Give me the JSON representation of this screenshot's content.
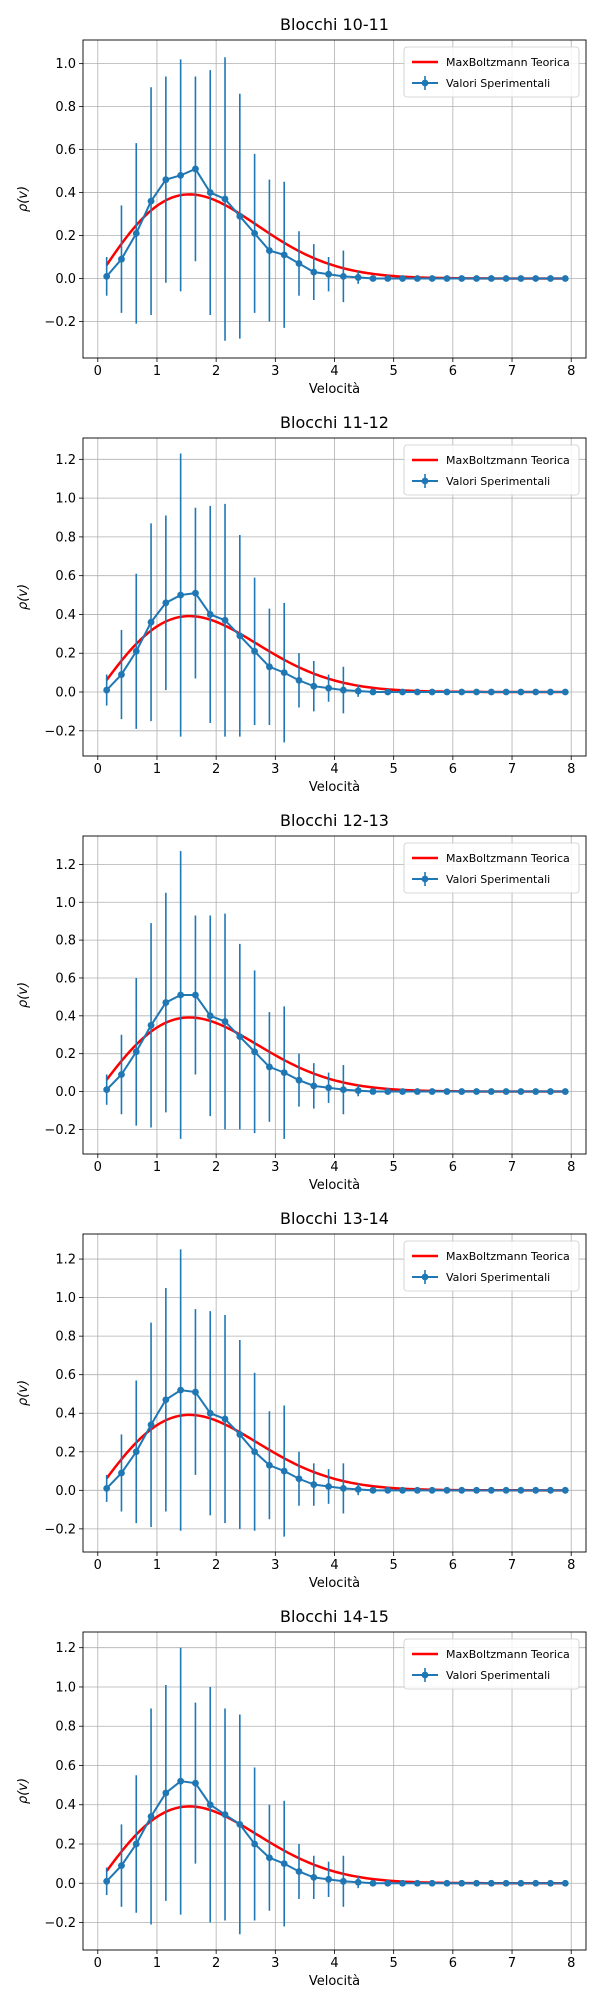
{
  "figure": {
    "background": "#ffffff"
  },
  "style": {
    "theory_color": "#ff0000",
    "exp_color": "#1f77b4",
    "grid_color": "#b0b0b0"
  },
  "chart_data": [
    {
      "type": "line",
      "title": "Blocchi 10-11",
      "xlabel": "Velocità",
      "ylabel": "ρ(v)",
      "xlim": [
        -0.25,
        8.25
      ],
      "ylim": [
        -0.37,
        1.11
      ],
      "xticks": [
        0,
        1,
        2,
        3,
        4,
        5,
        6,
        7,
        8
      ],
      "yticks": [
        -0.2,
        0.0,
        0.2,
        0.4,
        0.6,
        0.8,
        1.0
      ],
      "legend_position": "top-right",
      "grid": true,
      "series": [
        {
          "name": "MaxBoltzmann Teorica",
          "kind": "line",
          "color": "#ff0000"
        },
        {
          "name": "Valori Sperimentali",
          "kind": "errorbar",
          "color": "#1f77b4",
          "x": [
            0.15,
            0.4,
            0.65,
            0.9,
            1.15,
            1.4,
            1.65,
            1.9,
            2.15,
            2.4,
            2.65,
            2.9,
            3.15,
            3.4,
            3.65,
            3.9,
            4.15,
            4.4,
            4.65,
            4.9,
            5.15,
            5.4,
            5.65,
            5.9,
            6.15,
            6.4,
            6.65,
            6.9,
            7.15,
            7.4,
            7.65,
            7.9
          ],
          "y": [
            0.01,
            0.09,
            0.21,
            0.36,
            0.46,
            0.48,
            0.51,
            0.4,
            0.37,
            0.29,
            0.21,
            0.13,
            0.11,
            0.07,
            0.03,
            0.02,
            0.01,
            0.005,
            0,
            0,
            0,
            0,
            0,
            0,
            0,
            0,
            0,
            0,
            0,
            0,
            0,
            0
          ],
          "yerr": [
            0.09,
            0.25,
            0.42,
            0.53,
            0.48,
            0.54,
            0.43,
            0.57,
            0.66,
            0.57,
            0.37,
            0.33,
            0.34,
            0.15,
            0.13,
            0.08,
            0.12,
            0.03,
            0,
            0,
            0,
            0,
            0,
            0,
            0,
            0,
            0,
            0,
            0,
            0,
            0,
            0
          ]
        }
      ]
    },
    {
      "type": "line",
      "title": "Blocchi 11-12",
      "xlabel": "Velocità",
      "ylabel": "ρ(v)",
      "xlim": [
        -0.25,
        8.25
      ],
      "ylim": [
        -0.33,
        1.31
      ],
      "xticks": [
        0,
        1,
        2,
        3,
        4,
        5,
        6,
        7,
        8
      ],
      "yticks": [
        -0.2,
        0.0,
        0.2,
        0.4,
        0.6,
        0.8,
        1.0,
        1.2
      ],
      "legend_position": "top-right",
      "grid": true,
      "series": [
        {
          "name": "MaxBoltzmann Teorica",
          "kind": "line",
          "color": "#ff0000"
        },
        {
          "name": "Valori Sperimentali",
          "kind": "errorbar",
          "color": "#1f77b4",
          "x": [
            0.15,
            0.4,
            0.65,
            0.9,
            1.15,
            1.4,
            1.65,
            1.9,
            2.15,
            2.4,
            2.65,
            2.9,
            3.15,
            3.4,
            3.65,
            3.9,
            4.15,
            4.4,
            4.65,
            4.9,
            5.15,
            5.4,
            5.65,
            5.9,
            6.15,
            6.4,
            6.65,
            6.9,
            7.15,
            7.4,
            7.65,
            7.9
          ],
          "y": [
            0.01,
            0.09,
            0.21,
            0.36,
            0.46,
            0.5,
            0.51,
            0.4,
            0.37,
            0.29,
            0.21,
            0.13,
            0.1,
            0.06,
            0.03,
            0.02,
            0.01,
            0.005,
            0,
            0,
            0,
            0,
            0,
            0,
            0,
            0,
            0,
            0,
            0,
            0,
            0,
            0
          ],
          "yerr": [
            0.08,
            0.23,
            0.4,
            0.51,
            0.45,
            0.73,
            0.44,
            0.56,
            0.6,
            0.52,
            0.38,
            0.3,
            0.36,
            0.14,
            0.13,
            0.07,
            0.12,
            0.03,
            0,
            0,
            0,
            0,
            0,
            0,
            0,
            0,
            0,
            0,
            0,
            0,
            0,
            0
          ]
        }
      ]
    },
    {
      "type": "line",
      "title": "Blocchi 12-13",
      "xlabel": "Velocità",
      "ylabel": "ρ(v)",
      "xlim": [
        -0.25,
        8.25
      ],
      "ylim": [
        -0.33,
        1.35
      ],
      "xticks": [
        0,
        1,
        2,
        3,
        4,
        5,
        6,
        7,
        8
      ],
      "yticks": [
        -0.2,
        0.0,
        0.2,
        0.4,
        0.6,
        0.8,
        1.0,
        1.2
      ],
      "legend_position": "top-right",
      "grid": true,
      "series": [
        {
          "name": "MaxBoltzmann Teorica",
          "kind": "line",
          "color": "#ff0000"
        },
        {
          "name": "Valori Sperimentali",
          "kind": "errorbar",
          "color": "#1f77b4",
          "x": [
            0.15,
            0.4,
            0.65,
            0.9,
            1.15,
            1.4,
            1.65,
            1.9,
            2.15,
            2.4,
            2.65,
            2.9,
            3.15,
            3.4,
            3.65,
            3.9,
            4.15,
            4.4,
            4.65,
            4.9,
            5.15,
            5.4,
            5.65,
            5.9,
            6.15,
            6.4,
            6.65,
            6.9,
            7.15,
            7.4,
            7.65,
            7.9
          ],
          "y": [
            0.01,
            0.09,
            0.21,
            0.35,
            0.47,
            0.51,
            0.51,
            0.4,
            0.37,
            0.29,
            0.21,
            0.13,
            0.1,
            0.06,
            0.03,
            0.02,
            0.01,
            0.005,
            0,
            0,
            0,
            0,
            0,
            0,
            0,
            0,
            0,
            0,
            0,
            0,
            0,
            0
          ],
          "yerr": [
            0.08,
            0.21,
            0.39,
            0.54,
            0.58,
            0.76,
            0.42,
            0.53,
            0.57,
            0.49,
            0.43,
            0.29,
            0.35,
            0.14,
            0.12,
            0.08,
            0.13,
            0.03,
            0,
            0,
            0,
            0,
            0,
            0,
            0,
            0,
            0,
            0,
            0,
            0,
            0,
            0
          ]
        }
      ]
    },
    {
      "type": "line",
      "title": "Blocchi 13-14",
      "xlabel": "Velocità",
      "ylabel": "ρ(v)",
      "xlim": [
        -0.25,
        8.25
      ],
      "ylim": [
        -0.32,
        1.33
      ],
      "xticks": [
        0,
        1,
        2,
        3,
        4,
        5,
        6,
        7,
        8
      ],
      "yticks": [
        -0.2,
        0.0,
        0.2,
        0.4,
        0.6,
        0.8,
        1.0,
        1.2
      ],
      "legend_position": "top-right",
      "grid": true,
      "series": [
        {
          "name": "MaxBoltzmann Teorica",
          "kind": "line",
          "color": "#ff0000"
        },
        {
          "name": "Valori Sperimentali",
          "kind": "errorbar",
          "color": "#1f77b4",
          "x": [
            0.15,
            0.4,
            0.65,
            0.9,
            1.15,
            1.4,
            1.65,
            1.9,
            2.15,
            2.4,
            2.65,
            2.9,
            3.15,
            3.4,
            3.65,
            3.9,
            4.15,
            4.4,
            4.65,
            4.9,
            5.15,
            5.4,
            5.65,
            5.9,
            6.15,
            6.4,
            6.65,
            6.9,
            7.15,
            7.4,
            7.65,
            7.9
          ],
          "y": [
            0.01,
            0.09,
            0.2,
            0.34,
            0.47,
            0.52,
            0.51,
            0.4,
            0.37,
            0.29,
            0.2,
            0.13,
            0.1,
            0.06,
            0.03,
            0.02,
            0.01,
            0.005,
            0,
            0,
            0,
            0,
            0,
            0,
            0,
            0,
            0,
            0,
            0,
            0,
            0,
            0
          ],
          "yerr": [
            0.07,
            0.2,
            0.37,
            0.53,
            0.58,
            0.73,
            0.43,
            0.53,
            0.54,
            0.49,
            0.41,
            0.28,
            0.34,
            0.14,
            0.11,
            0.09,
            0.13,
            0.03,
            0,
            0,
            0,
            0,
            0,
            0,
            0,
            0,
            0,
            0,
            0,
            0,
            0,
            0
          ]
        }
      ]
    },
    {
      "type": "line",
      "title": "Blocchi 14-15",
      "xlabel": "Velocità",
      "ylabel": "ρ(v)",
      "xlim": [
        -0.25,
        8.25
      ],
      "ylim": [
        -0.34,
        1.28
      ],
      "xticks": [
        0,
        1,
        2,
        3,
        4,
        5,
        6,
        7,
        8
      ],
      "yticks": [
        -0.2,
        0.0,
        0.2,
        0.4,
        0.6,
        0.8,
        1.0,
        1.2
      ],
      "legend_position": "top-right",
      "grid": true,
      "series": [
        {
          "name": "MaxBoltzmann Teorica",
          "kind": "line",
          "color": "#ff0000"
        },
        {
          "name": "Valori Sperimentali",
          "kind": "errorbar",
          "color": "#1f77b4",
          "x": [
            0.15,
            0.4,
            0.65,
            0.9,
            1.15,
            1.4,
            1.65,
            1.9,
            2.15,
            2.4,
            2.65,
            2.9,
            3.15,
            3.4,
            3.65,
            3.9,
            4.15,
            4.4,
            4.65,
            4.9,
            5.15,
            5.4,
            5.65,
            5.9,
            6.15,
            6.4,
            6.65,
            6.9,
            7.15,
            7.4,
            7.65,
            7.9
          ],
          "y": [
            0.01,
            0.09,
            0.2,
            0.34,
            0.46,
            0.52,
            0.51,
            0.4,
            0.35,
            0.3,
            0.2,
            0.13,
            0.1,
            0.06,
            0.03,
            0.02,
            0.01,
            0.005,
            0,
            0,
            0,
            0,
            0,
            0,
            0,
            0,
            0,
            0,
            0,
            0,
            0,
            0
          ],
          "yerr": [
            0.07,
            0.21,
            0.35,
            0.55,
            0.55,
            0.68,
            0.41,
            0.6,
            0.54,
            0.56,
            0.39,
            0.27,
            0.32,
            0.14,
            0.11,
            0.09,
            0.13,
            0.03,
            0,
            0,
            0,
            0,
            0,
            0,
            0,
            0,
            0,
            0,
            0,
            0,
            0,
            0
          ]
        }
      ]
    }
  ]
}
